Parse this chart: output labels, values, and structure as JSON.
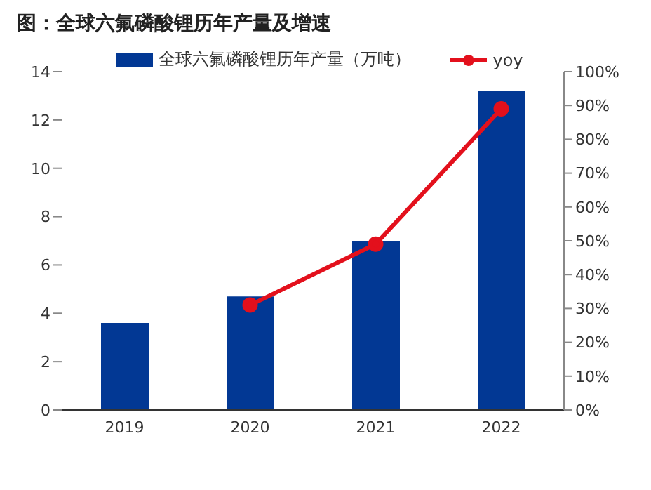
{
  "chart_data": {
    "type": "bar",
    "title": "图：全球六氟磷酸锂历年产量及增速",
    "categories": [
      "2019",
      "2020",
      "2021",
      "2022"
    ],
    "series": [
      {
        "name": "全球六氟磷酸锂历年产量（万吨）",
        "color": "#023894",
        "values": [
          3.6,
          4.7,
          7.0,
          13.2
        ]
      },
      {
        "name": "yoy",
        "type": "line",
        "axis": "y2",
        "color": "#e3101c",
        "values": [
          null,
          31,
          49,
          89
        ]
      }
    ],
    "ylim": [
      0,
      14
    ],
    "yticks": [
      0,
      2,
      4,
      6,
      8,
      10,
      12,
      14
    ],
    "y2lim": [
      0,
      100
    ],
    "y2ticks": [
      {
        "value": 0,
        "label": "0%"
      },
      {
        "value": 10,
        "label": "10%"
      },
      {
        "value": 20,
        "label": "20%"
      },
      {
        "value": 30,
        "label": "30%"
      },
      {
        "value": 40,
        "label": "40%"
      },
      {
        "value": 50,
        "label": "50%"
      },
      {
        "value": 60,
        "label": "60%"
      },
      {
        "value": 70,
        "label": "70%"
      },
      {
        "value": 80,
        "label": "80%"
      },
      {
        "value": 90,
        "label": "90%"
      },
      {
        "value": 100,
        "label": "100%"
      }
    ],
    "legend": "top",
    "grid": false,
    "marker": "circle"
  }
}
